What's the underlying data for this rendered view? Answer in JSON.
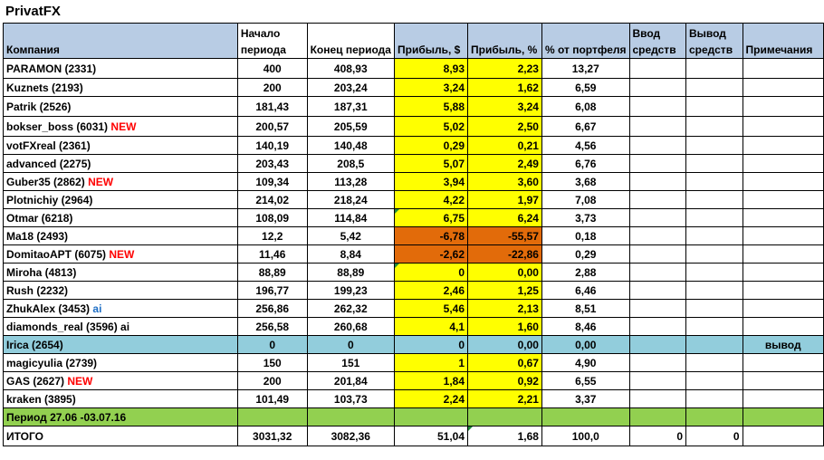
{
  "title": "PrivatFX",
  "headers": {
    "company": "Компания",
    "start": "Начало периода",
    "end": "Конец периода",
    "profit_usd": "Прибыль, $",
    "profit_pct": "Прибыль, %",
    "portfolio_pct": "% от портфеля",
    "deposit": "Ввод средств",
    "withdraw": "Вывод средств",
    "notes": "Примечания"
  },
  "rows": [
    {
      "name": "PARAMON (2331)",
      "tag": "",
      "start": "400",
      "end": "408,93",
      "profit": "8,93",
      "pct": "2,23",
      "portfolio": "13,27",
      "note": ""
    },
    {
      "name": "Kuznets (2193)",
      "tag": "",
      "start": "200",
      "end": "203,24",
      "profit": "3,24",
      "pct": "1,62",
      "portfolio": "6,59",
      "note": ""
    },
    {
      "name": "Patrik (2526)",
      "tag": "",
      "start": "181,43",
      "end": "187,31",
      "profit": "5,88",
      "pct": "3,24",
      "portfolio": "6,08",
      "note": ""
    },
    {
      "name": "bokser_boss (6031)",
      "tag": "NEW",
      "start": "200,57",
      "end": "205,59",
      "profit": "5,02",
      "pct": "2,50",
      "portfolio": "6,67",
      "note": ""
    },
    {
      "name": "votFXreal  (2361)",
      "tag": "",
      "start": "140,19",
      "end": "140,48",
      "profit": "0,29",
      "pct": "0,21",
      "portfolio": "4,56",
      "note": ""
    },
    {
      "name": "advanced (2275)",
      "tag": "",
      "start": "203,43",
      "end": "208,5",
      "profit": "5,07",
      "pct": "2,49",
      "portfolio": "6,76",
      "note": ""
    },
    {
      "name": "Guber35 (2862)",
      "tag": "NEW",
      "start": "109,34",
      "end": "113,28",
      "profit": "3,94",
      "pct": "3,60",
      "portfolio": "3,68",
      "note": ""
    },
    {
      "name": "Plotnichiy (2964)",
      "tag": "",
      "start": "214,02",
      "end": "218,24",
      "profit": "4,22",
      "pct": "1,97",
      "portfolio": "7,08",
      "note": ""
    },
    {
      "name": "Otmar (6218)",
      "tag": "",
      "start": "108,09",
      "end": "114,84",
      "profit": "6,75",
      "pct": "6,24",
      "portfolio": "3,73",
      "note": ""
    },
    {
      "name": "Ma18 (2493)",
      "tag": "",
      "start": "12,2",
      "end": "5,42",
      "profit": "-6,78",
      "pct": "-55,57",
      "portfolio": "0,18",
      "note": ""
    },
    {
      "name": "DomitaoAPT (6075)",
      "tag": "NEW",
      "start": "11,46",
      "end": "8,84",
      "profit": "-2,62",
      "pct": "-22,86",
      "portfolio": "0,29",
      "note": ""
    },
    {
      "name": "Miroha (4813)",
      "tag": "",
      "start": "88,89",
      "end": "88,89",
      "profit": "0",
      "pct": "0,00",
      "portfolio": "2,88",
      "note": ""
    },
    {
      "name": "Rush (2232)",
      "tag": "",
      "start": "196,77",
      "end": "199,23",
      "profit": "2,46",
      "pct": "1,25",
      "portfolio": "6,46",
      "note": ""
    },
    {
      "name": "ZhukAlex (3453)",
      "tag": "ai",
      "start": "256,86",
      "end": "262,32",
      "profit": "5,46",
      "pct": "2,13",
      "portfolio": "8,51",
      "note": ""
    },
    {
      "name": "diamonds_real (3596) ai",
      "tag": "",
      "start": "256,58",
      "end": "260,68",
      "profit": "4,1",
      "pct": "1,60",
      "portfolio": "8,46",
      "note": ""
    },
    {
      "name": "Irica (2654)",
      "tag": "",
      "start": "0",
      "end": "0",
      "profit": "0",
      "pct": "0,00",
      "portfolio": "0,00",
      "note": "вывод"
    },
    {
      "name": "magicyulia (2739)",
      "tag": "",
      "start": "150",
      "end": "151",
      "profit": "1",
      "pct": "0,67",
      "portfolio": "4,90",
      "note": ""
    },
    {
      "name": "GAS (2627)",
      "tag": "NEW",
      "start": "200",
      "end": "201,84",
      "profit": "1,84",
      "pct": "0,92",
      "portfolio": "6,55",
      "note": ""
    },
    {
      "name": "kraken (3895)",
      "tag": "",
      "start": "101,49",
      "end": "103,73",
      "profit": "2,24",
      "pct": "2,21",
      "portfolio": "3,37",
      "note": ""
    }
  ],
  "period": "Период 27.06 -03.07.16",
  "total": {
    "label": "ИТОГО",
    "start": "3031,32",
    "end": "3082,36",
    "profit": "51,04",
    "pct": "1,68",
    "portfolio": "100,0",
    "deposit": "0",
    "withdraw": "0"
  },
  "colors": {
    "header": "#b8cce4",
    "profit_positive": "#ffff00",
    "profit_negative": "#e26b0a",
    "withdrawn_row": "#92cddc",
    "period_row": "#92d050",
    "new_tag": "#ff0000",
    "ai_tag": "#1f6fc5"
  }
}
